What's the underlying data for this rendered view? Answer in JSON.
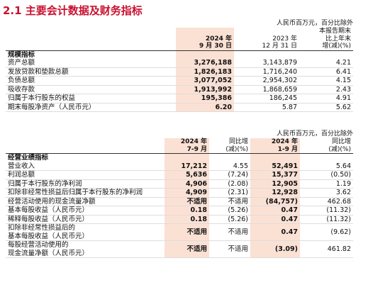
{
  "title": "2.1 主要会计数据及财务指标",
  "table1": {
    "unit_note": "人民币百万元，百分比除外",
    "header": [
      "2024 年\n9 月 30 日",
      "2023 年\n12 月 31 日",
      "本报告期末\n比上年末\n增(减)(%)"
    ],
    "section": "规模指标",
    "rows": [
      [
        "资产总额",
        "3,276,188",
        "3,143,879",
        "4.21"
      ],
      [
        "发放贷款和垫款总额",
        "1,826,183",
        "1,716,240",
        "6.41"
      ],
      [
        "负债总额",
        "3,077,052",
        "2,954,302",
        "4.15"
      ],
      [
        "吸收存款",
        "1,913,992",
        "1,868,659",
        "2.43"
      ],
      [
        "归属于本行股东的权益",
        "195,386",
        "186,245",
        "4.91"
      ],
      [
        "期末每股净资产（人民币元）",
        "6.20",
        "5.87",
        "5.62"
      ]
    ]
  },
  "table2": {
    "unit_note": "人民币百万元，百分比除外",
    "header": [
      "2024 年\n7-9 月",
      "同比增\n(减)(%)",
      "2024 年\n1-9 月",
      "同比增\n(减)(%)"
    ],
    "section": "经营业绩指标",
    "rows": [
      [
        "营业收入",
        "17,212",
        "4.55",
        "52,491",
        "5.64"
      ],
      [
        "利润总额",
        "5,636",
        "(7.24)",
        "15,377",
        "(0.50)"
      ],
      [
        "归属于本行股东的净利润",
        "4,906",
        "(2.08)",
        "12,905",
        "1.19"
      ],
      [
        "扣除非经常性损益后归属于本行股东的净利润",
        "4,909",
        "(2.31)",
        "12,928",
        "3.62"
      ],
      [
        "经营活动使用的现金流量净额",
        "不适用",
        "不适用",
        "(84,757)",
        "462.68"
      ],
      [
        "基本每股收益（人民币元）",
        "0.18",
        "(5.26)",
        "0.47",
        "(11.32)"
      ],
      [
        "稀释每股收益（人民币元）",
        "0.18",
        "(5.26)",
        "0.47",
        "(11.32)"
      ],
      [
        "扣除非经常性损益后的\n基本每股收益（人民币元）",
        "不适用",
        "不适用",
        "0.47",
        "(9.62)"
      ],
      [
        "每股经营活动使用的\n现金流量净额（人民币元）",
        "不适用",
        "不适用",
        "(3.09)",
        "461.82"
      ]
    ]
  }
}
